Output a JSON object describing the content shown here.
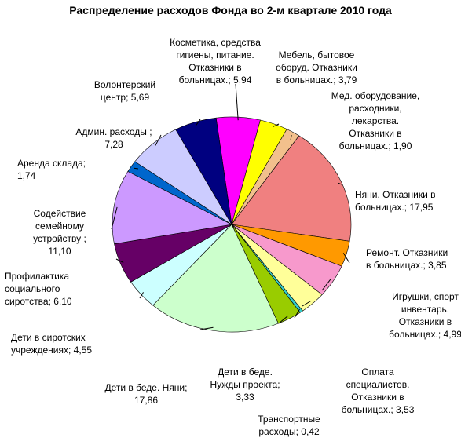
{
  "chart_data": {
    "type": "pie",
    "title": "Распределение расходов Фонда во 2-м квартале 2010 года",
    "slices": [
      {
        "label": "Косметика, средства гигиены, питание. Отказники в больницах.",
        "value": 5.94,
        "value_text": "5,94",
        "color": "#ff00ff"
      },
      {
        "label": "Мебель, бытовое оборуд. Отказники в больницах.",
        "value": 3.79,
        "value_text": "3,79",
        "color": "#ffff00"
      },
      {
        "label": "Мед. оборудование, расходники, лекарства. Отказники в больницах.",
        "value": 1.9,
        "value_text": "1,90",
        "color": "#f2c08c"
      },
      {
        "label": "Няни. Отказники в больницах.",
        "value": 17.95,
        "value_text": "17,95",
        "color": "#f08080"
      },
      {
        "label": "Ремонт. Отказники в больницах.",
        "value": 3.85,
        "value_text": "3,85",
        "color": "#ff9900"
      },
      {
        "label": "Игрушки, спорт инвентарь. Отказники в больницах.",
        "value": 4.99,
        "value_text": "4,99",
        "color": "#f799cc"
      },
      {
        "label": "Оплата специалистов. Отказники в больницах.",
        "value": 3.53,
        "value_text": "3,53",
        "color": "#ffff99"
      },
      {
        "label": "Транспортные расходы",
        "value": 0.42,
        "value_text": "0,42",
        "color": "#33cccc"
      },
      {
        "label": "Дети в беде. Нужды проекта",
        "value": 3.33,
        "value_text": "3,33",
        "color": "#99cc00"
      },
      {
        "label": "Дети в беде. Няни",
        "value": 17.86,
        "value_text": "17,86",
        "color": "#ccffcc"
      },
      {
        "label": "Дети в сиротских учреждениях",
        "value": 4.55,
        "value_text": "4,55",
        "color": "#ccffff"
      },
      {
        "label": "Профилактика социального сиротства",
        "value": 6.1,
        "value_text": "6,10",
        "color": "#660066"
      },
      {
        "label": "Содействие семейному устройству ",
        "value": 11.1,
        "value_text": "11,10",
        "color": "#cc99ff"
      },
      {
        "label": "Аренда склада",
        "value": 1.74,
        "value_text": "1,74",
        "color": "#0066cc"
      },
      {
        "label": "Админ. расходы ",
        "value": 7.28,
        "value_text": "7,28",
        "color": "#ccccff"
      },
      {
        "label": "Волонтерский центр",
        "value": 5.69,
        "value_text": "5,69",
        "color": "#000080"
      }
    ]
  }
}
